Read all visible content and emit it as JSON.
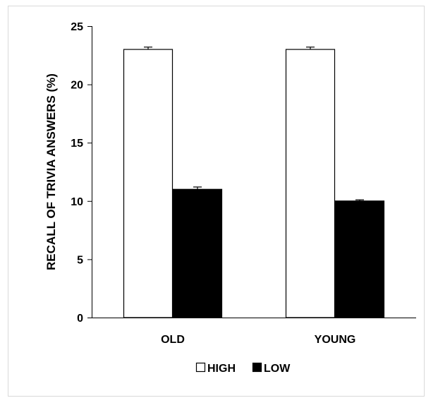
{
  "chart_data": {
    "type": "bar",
    "title": "",
    "xlabel": "",
    "ylabel": "RECALL OF TRIVIA ANSWERS (%)",
    "categories": [
      "OLD",
      "YOUNG"
    ],
    "series": [
      {
        "name": "HIGH",
        "values": [
          23.0,
          23.0
        ],
        "error": [
          0.2,
          0.2
        ],
        "fill": "#ffffff",
        "stroke": "#000000"
      },
      {
        "name": "LOW",
        "values": [
          11.0,
          10.0
        ],
        "error": [
          0.2,
          0.1
        ],
        "fill": "#000000",
        "stroke": "#000000"
      }
    ],
    "ylim": [
      0,
      25
    ],
    "yticks": [
      0,
      5,
      10,
      15,
      20,
      25
    ],
    "grid": false,
    "legend_position": "bottom-center"
  }
}
